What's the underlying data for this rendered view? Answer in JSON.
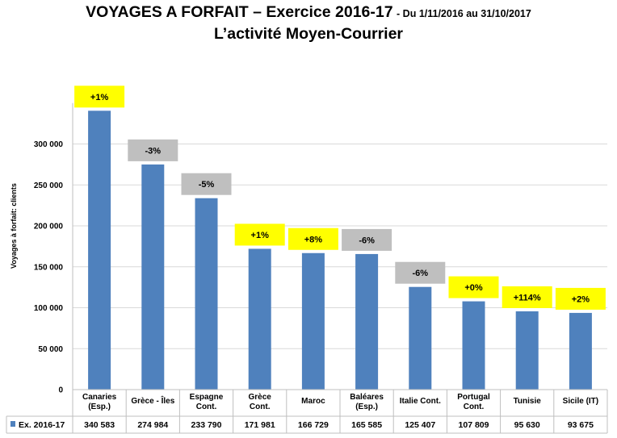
{
  "header": {
    "title": "VOYAGES A FORFAIT – Exercice 2016-17",
    "period": "- Du 1/11/2016 au 31/10/2017",
    "subtitle": "L’activité Moyen-Courrier"
  },
  "colors": {
    "bar": "#4f81bd",
    "positive_badge": "#ffff00",
    "negative_badge": "#bfbfbf",
    "grid": "#d9d9d9"
  },
  "chart_data": {
    "type": "bar",
    "ylabel": "Voyages à forfait: clients",
    "ylim": [
      0,
      350000
    ],
    "yticks": [
      0,
      50000,
      100000,
      150000,
      200000,
      250000,
      300000
    ],
    "ytick_labels": [
      "0",
      "50 000",
      "100 000",
      "150 000",
      "200 000",
      "250 000",
      "300 000"
    ],
    "grid": true,
    "legend_position": "bottom-left, in data table",
    "categories": [
      [
        "Canaries",
        "(Esp.)"
      ],
      [
        "Grèce - Îles"
      ],
      [
        "Espagne",
        "Cont."
      ],
      [
        "Grèce",
        "Cont."
      ],
      [
        "Maroc"
      ],
      [
        "Baléares",
        "(Esp.)"
      ],
      [
        "Italie Cont."
      ],
      [
        "Portugal",
        "Cont."
      ],
      [
        "Tunisie"
      ],
      [
        "Sicile (IT)"
      ]
    ],
    "series": [
      {
        "name": "Ex. 2016-17",
        "values": [
          340583,
          274984,
          233790,
          171981,
          166729,
          165585,
          125407,
          107809,
          95630,
          93675
        ],
        "value_labels": [
          "340 583",
          "274 984",
          "233 790",
          "171 981",
          "166 729",
          "165 585",
          "125 407",
          "107 809",
          "95 630",
          "93 675"
        ]
      }
    ],
    "annotations": [
      "+1%",
      "-3%",
      "-5%",
      "+1%",
      "+8%",
      "-6%",
      "-6%",
      "+0%",
      "+114%",
      "+2%"
    ]
  }
}
